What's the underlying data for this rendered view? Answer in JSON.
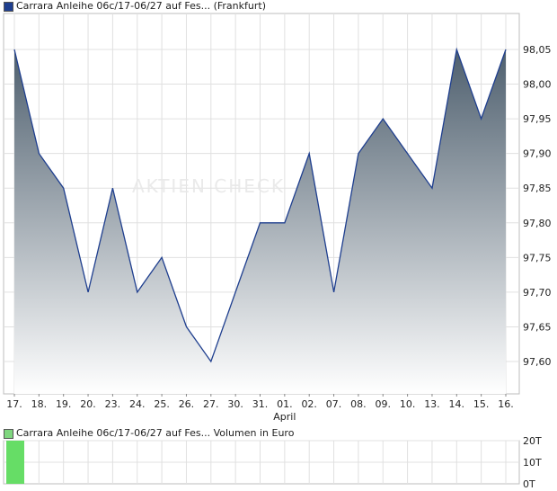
{
  "price_chart": {
    "title": "Carrara Anleihe 06c/17-06/27 auf Fes... (Frankfurt)",
    "legend_color": "#1f3f8f",
    "watermark": "AKTIEN CHECK",
    "chart_data": {
      "type": "area",
      "categories": [
        "17.",
        "18.",
        "19.",
        "20.",
        "23.",
        "24.",
        "25.",
        "26.",
        "27.",
        "30.",
        "31.",
        "01.",
        "02.",
        "07.",
        "08.",
        "09.",
        "10.",
        "13.",
        "14.",
        "15.",
        "16."
      ],
      "month_label": "April",
      "month_label_index": 11,
      "series": [
        {
          "values": [
            98.05,
            97.9,
            97.85,
            97.7,
            97.85,
            97.7,
            97.75,
            97.65,
            97.6,
            97.7,
            97.8,
            97.8,
            97.9,
            97.7,
            97.9,
            97.95,
            97.9,
            97.85,
            98.05,
            97.95,
            98.05
          ]
        }
      ],
      "yticks": [
        "98,05",
        "98,00",
        "97,95",
        "97,90",
        "97,85",
        "97,80",
        "97,75",
        "97,70",
        "97,65",
        "97,60"
      ],
      "ylim": [
        97.55,
        98.1
      ],
      "grid": true,
      "line_color": "#1f3f8f",
      "fill_top_color": "#4e5f6e",
      "fill_bottom_color": "#ffffff"
    }
  },
  "volume_chart": {
    "title": "Carrara Anleihe 06c/17-06/27 auf Fes... Volumen in Euro",
    "legend_color": "#7fd67f",
    "chart_data": {
      "type": "bar",
      "categories": [
        "17.",
        "18.",
        "19.",
        "20.",
        "23.",
        "24.",
        "25.",
        "26.",
        "27.",
        "30.",
        "31.",
        "01.",
        "02.",
        "07.",
        "08.",
        "09.",
        "10.",
        "13.",
        "14.",
        "15.",
        "16."
      ],
      "values": [
        20,
        0,
        0,
        0,
        0,
        0,
        0,
        0,
        0,
        0,
        0,
        0,
        0,
        0,
        0,
        0,
        0,
        0,
        0,
        0,
        0
      ],
      "yticks": [
        "20T",
        "10T",
        "0T"
      ],
      "ylim": [
        0,
        20
      ],
      "bar_color": "#66dd66"
    }
  }
}
